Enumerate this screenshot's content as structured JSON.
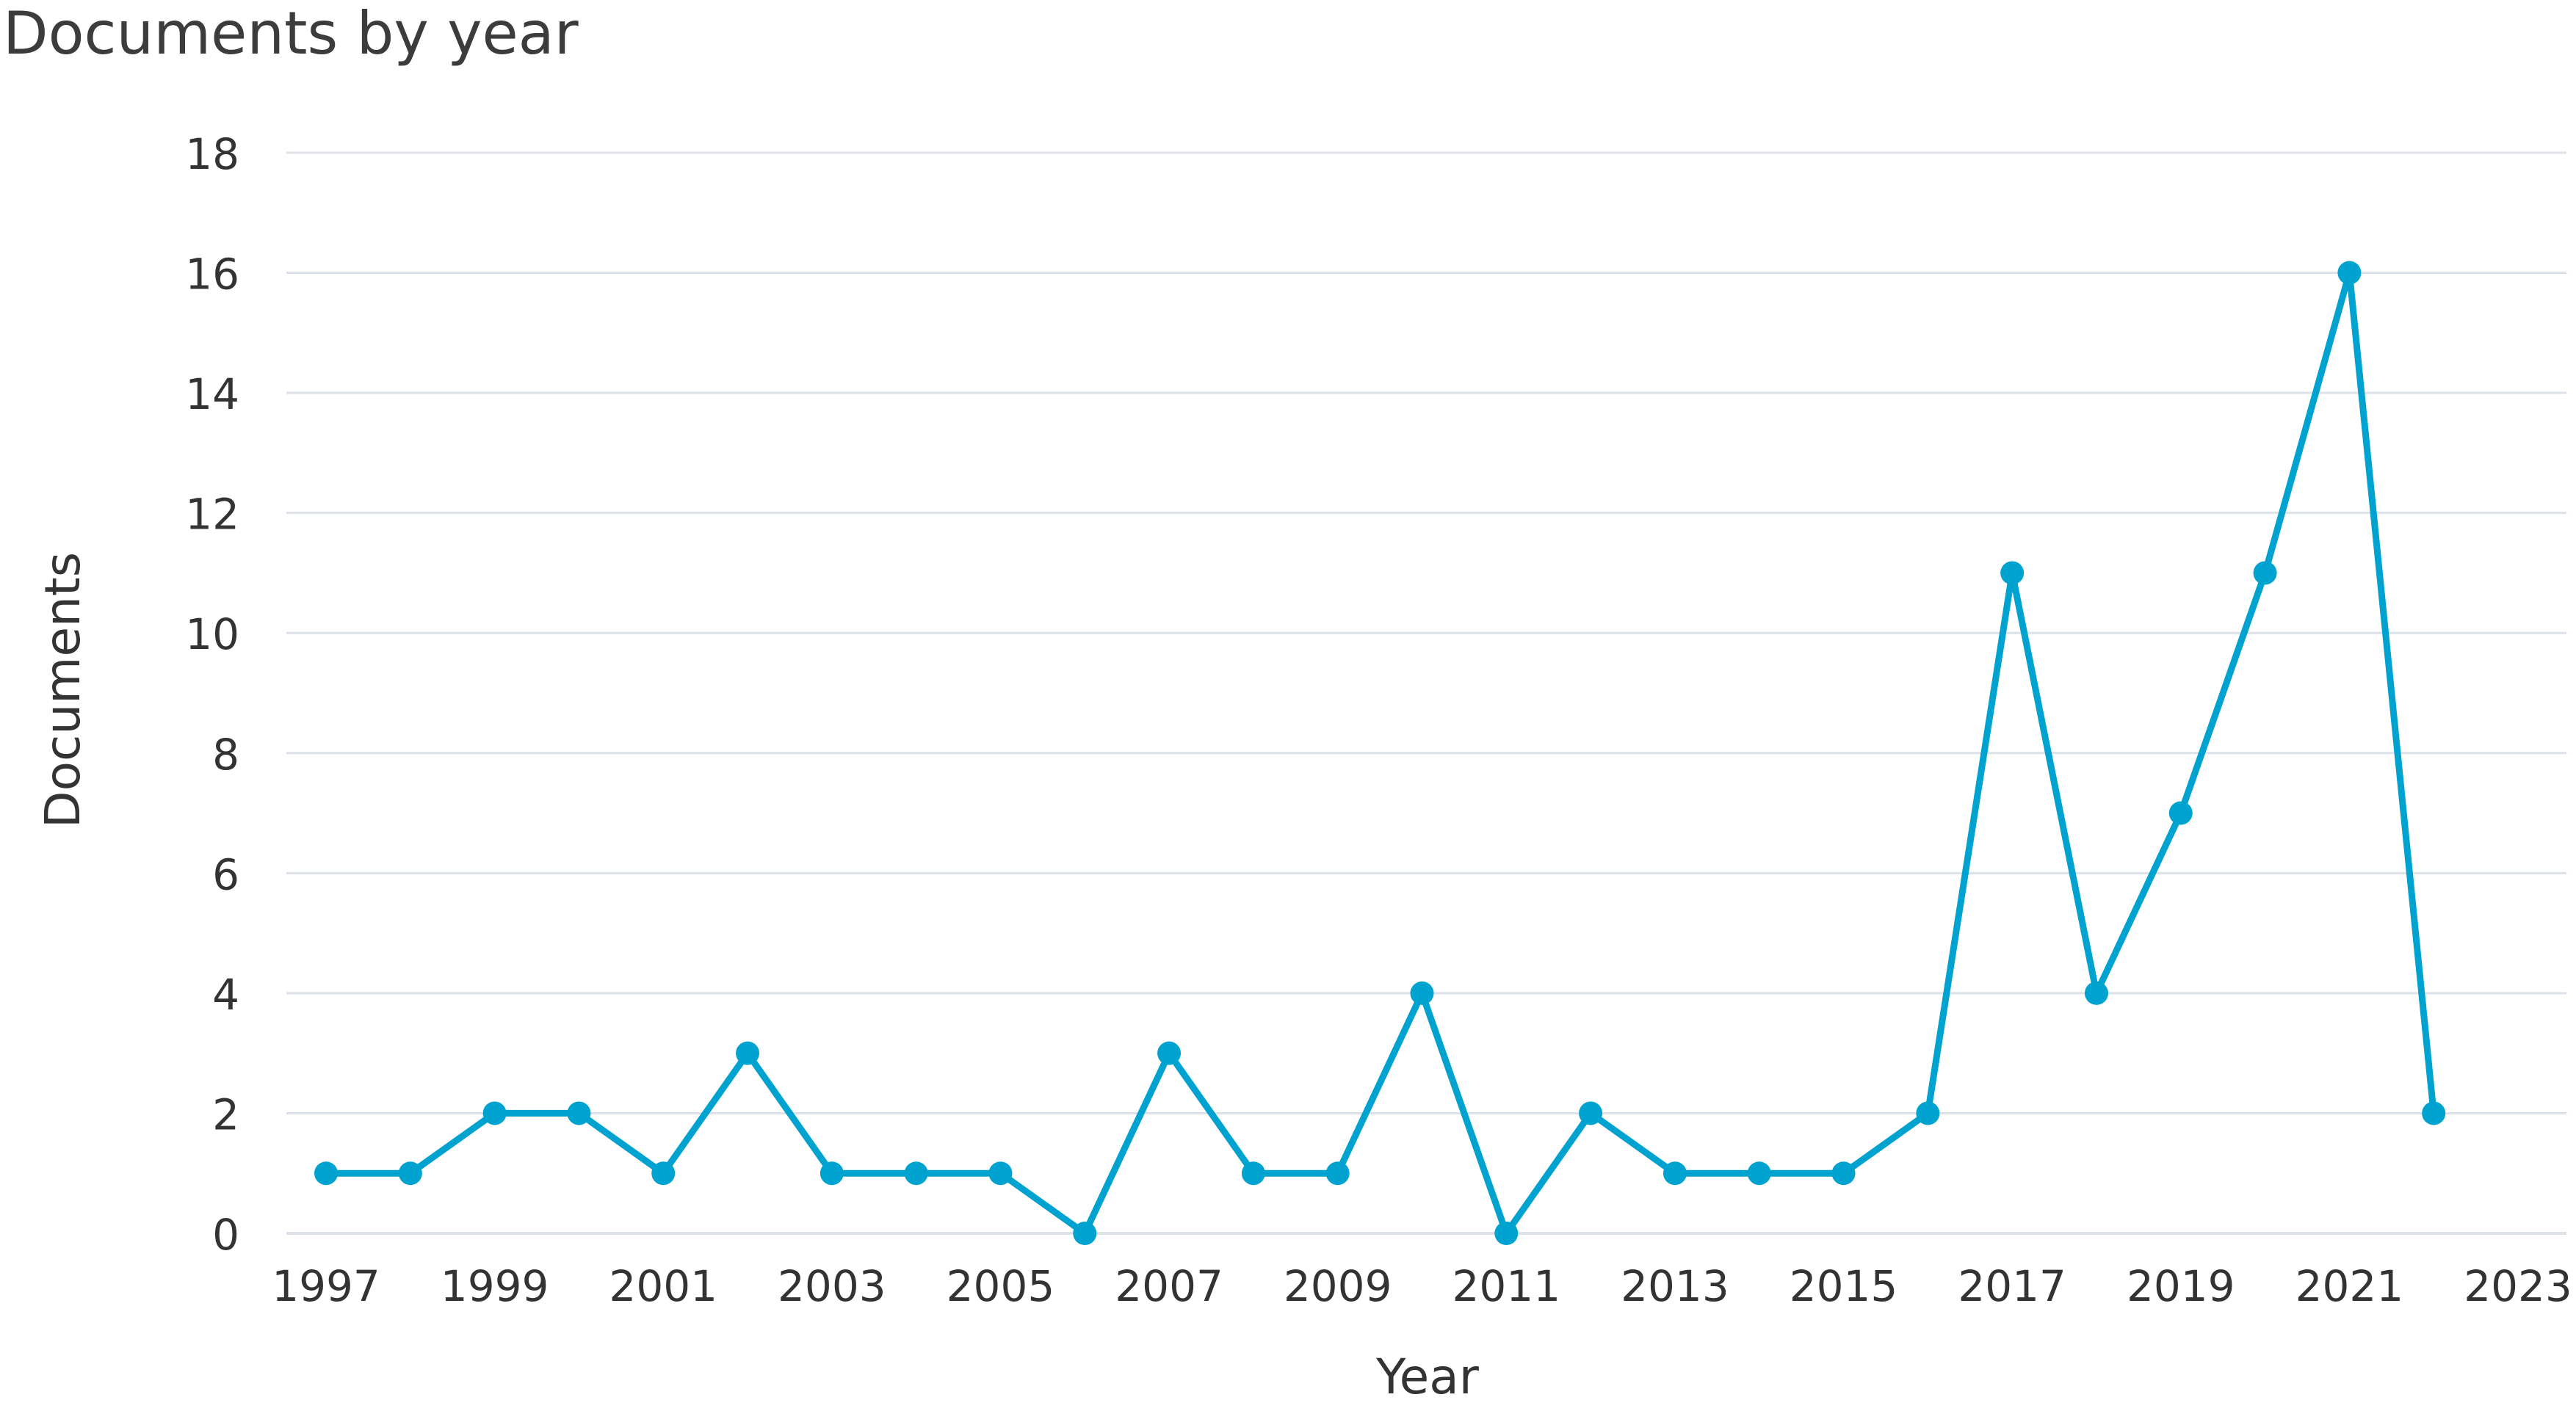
{
  "chart_data": {
    "type": "line",
    "title": "Documents by year",
    "xlabel": "Year",
    "ylabel": "Documents",
    "x": [
      1997,
      1998,
      1999,
      2000,
      2001,
      2002,
      2003,
      2004,
      2005,
      2006,
      2007,
      2008,
      2009,
      2010,
      2011,
      2012,
      2013,
      2014,
      2015,
      2016,
      2017,
      2018,
      2019,
      2020,
      2021,
      2022
    ],
    "series": [
      {
        "values": [
          1,
          1,
          2,
          2,
          1,
          3,
          1,
          1,
          1,
          0,
          3,
          1,
          1,
          4,
          0,
          2,
          1,
          1,
          1,
          2,
          11,
          4,
          7,
          11,
          16,
          2
        ]
      }
    ],
    "xlim": [
      1997,
      2023
    ],
    "ylim": [
      0,
      18
    ],
    "xticks": [
      "1997",
      "1999",
      "2001",
      "2003",
      "2005",
      "2007",
      "2009",
      "2011",
      "2013",
      "2015",
      "2017",
      "2019",
      "2021",
      "2023"
    ],
    "yticks": [
      "0",
      "2",
      "4",
      "6",
      "8",
      "10",
      "12",
      "14",
      "16",
      "18"
    ],
    "grid": true,
    "legend": "none",
    "line_color": "#00a2d0",
    "grid_color": "#dde2ea"
  }
}
